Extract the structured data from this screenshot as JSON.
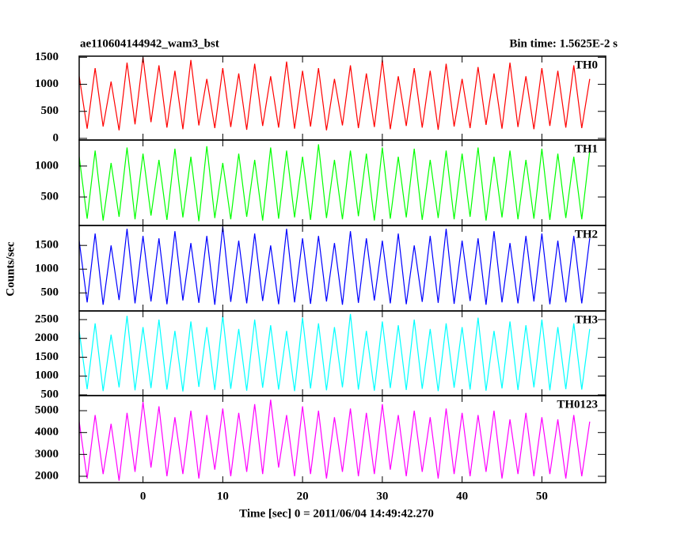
{
  "chart_data": {
    "type": "line",
    "title": "ae110604144942_wam3_bst",
    "subtitle": "Bin time: 1.5625E-2 s",
    "xlabel": "Time [sec] 0 = 2011/06/04 14:49:42.270",
    "ylabel": "Counts/sec",
    "xlim": [
      -8,
      58
    ],
    "xticks": [
      0,
      10,
      20,
      30,
      40,
      50
    ],
    "x": [
      -8,
      -7,
      -6,
      -5,
      -4,
      -3,
      -2,
      -1,
      0,
      1,
      2,
      3,
      4,
      5,
      6,
      7,
      8,
      9,
      10,
      11,
      12,
      13,
      14,
      15,
      16,
      17,
      18,
      19,
      20,
      21,
      22,
      23,
      24,
      25,
      26,
      27,
      28,
      29,
      30,
      31,
      32,
      33,
      34,
      35,
      36,
      37,
      38,
      39,
      40,
      41,
      42,
      43,
      44,
      45,
      46,
      47,
      48,
      49,
      50,
      51,
      52,
      53,
      54,
      55,
      56
    ],
    "series": [
      {
        "name": "TH0",
        "color": "#ff0000",
        "ylim": [
          -30,
          1520
        ],
        "yticks": [
          0,
          500,
          1000,
          1500
        ],
        "values": [
          1150,
          180,
          1300,
          220,
          1050,
          150,
          1400,
          260,
          1500,
          300,
          1350,
          200,
          1250,
          170,
          1450,
          240,
          1100,
          190,
          1300,
          210,
          1200,
          160,
          1380,
          230,
          1150,
          200,
          1420,
          180,
          1250,
          220,
          1300,
          150,
          1100,
          240,
          1350,
          190,
          1200,
          210,
          1450,
          170,
          1150,
          230,
          1300,
          200,
          1250,
          160,
          1380,
          220,
          1100,
          190,
          1320,
          250,
          1200,
          180,
          1400,
          210,
          1150,
          170,
          1300,
          230,
          1250,
          200,
          1350,
          190,
          1100
        ]
      },
      {
        "name": "TH1",
        "color": "#00ff00",
        "ylim": [
          40,
          1420
        ],
        "yticks": [
          500,
          1000
        ],
        "values": [
          1150,
          150,
          1250,
          120,
          1050,
          180,
          1300,
          140,
          1200,
          200,
          1100,
          130,
          1280,
          170,
          1150,
          110,
          1320,
          160,
          1050,
          140,
          1200,
          180,
          1100,
          120,
          1300,
          150,
          1250,
          170,
          1150,
          130,
          1350,
          160,
          1100,
          140,
          1250,
          190,
          1200,
          120,
          1300,
          150,
          1150,
          170,
          1280,
          130,
          1100,
          160,
          1250,
          140,
          1200,
          180,
          1300,
          120,
          1150,
          170,
          1250,
          140,
          1100,
          150,
          1280,
          130,
          1200,
          160,
          1150,
          140,
          1250
        ]
      },
      {
        "name": "TH2",
        "color": "#0000ff",
        "ylim": [
          120,
          1920
        ],
        "yticks": [
          500,
          1000,
          1500
        ],
        "values": [
          1600,
          300,
          1750,
          250,
          1500,
          350,
          1850,
          280,
          1700,
          320,
          1650,
          260,
          1800,
          340,
          1550,
          290,
          1700,
          250,
          1900,
          310,
          1600,
          280,
          1750,
          330,
          1500,
          260,
          1850,
          300,
          1650,
          270,
          1700,
          320,
          1550,
          250,
          1800,
          290,
          1650,
          340,
          1600,
          280,
          1750,
          260,
          1500,
          310,
          1700,
          290,
          1850,
          270,
          1600,
          330,
          1650,
          250,
          1800,
          300,
          1550,
          280,
          1700,
          320,
          1750,
          260,
          1600,
          300,
          1700,
          280,
          1650
        ]
      },
      {
        "name": "TH3",
        "color": "#00ffff",
        "ylim": [
          480,
          2730
        ],
        "yticks": [
          500,
          1000,
          1500,
          2000,
          2500
        ],
        "values": [
          2200,
          650,
          2400,
          600,
          2100,
          700,
          2600,
          620,
          2300,
          680,
          2500,
          640,
          2200,
          590,
          2450,
          710,
          2300,
          630,
          2600,
          660,
          2250,
          610,
          2500,
          690,
          2350,
          640,
          2200,
          600,
          2550,
          670,
          2400,
          620,
          2300,
          700,
          2650,
          640,
          2200,
          610,
          2450,
          680,
          2350,
          630,
          2500,
          660,
          2250,
          600,
          2400,
          690,
          2300,
          640,
          2550,
          610,
          2200,
          670,
          2450,
          630,
          2350,
          700,
          2500,
          620,
          2300,
          650,
          2400,
          640,
          2250
        ]
      },
      {
        "name": "TH0123",
        "color": "#ff00ff",
        "ylim": [
          1710,
          5690
        ],
        "yticks": [
          2000,
          3000,
          4000,
          5000
        ],
        "values": [
          4500,
          1900,
          4800,
          2100,
          4400,
          1800,
          4900,
          2200,
          5400,
          2400,
          5200,
          2000,
          4700,
          2100,
          5000,
          1900,
          4800,
          2300,
          5100,
          2000,
          4900,
          2200,
          5300,
          2100,
          5500,
          2400,
          4800,
          2000,
          5200,
          2100,
          5000,
          1900,
          4700,
          2200,
          5100,
          2000,
          4900,
          2100,
          5300,
          2300,
          4800,
          2000,
          5000,
          2200,
          4700,
          1900,
          5100,
          2100,
          4900,
          2000,
          4800,
          2200,
          5000,
          1900,
          4600,
          2100,
          4900,
          2000,
          4700,
          2100,
          4600,
          1900,
          4800,
          2000,
          4500
        ]
      }
    ]
  }
}
